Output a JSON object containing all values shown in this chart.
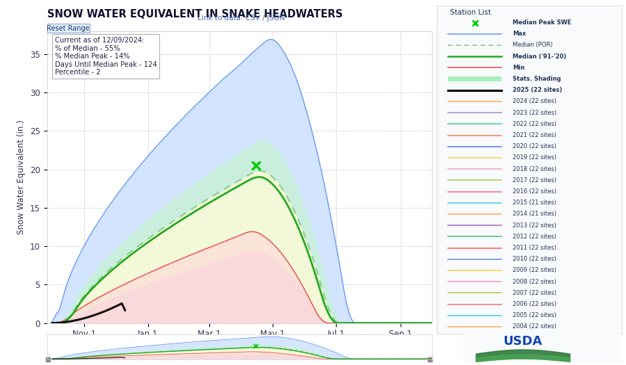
{
  "title": "SNOW WATER EQUIVALENT IN SNAKE HEADWATERS",
  "ylabel": "Snow Water Equivalent (in.)",
  "reset_button": "Reset Range",
  "link_text": "Link to data: CSV / JSON",
  "info_box": [
    "Current as of 12/09/2024:",
    "% of Median - 55%",
    "% Median Peak - 14%",
    "Days Until Median Peak - 124",
    "Percentile - 2"
  ],
  "station_list_title": "Station List",
  "xtick_labels": [
    "Nov 1",
    "Jan 1",
    "Mar 1",
    "May 1",
    "Jul 1",
    "Sep 1"
  ],
  "xtick_days": [
    31,
    92,
    151,
    212,
    273,
    335
  ],
  "ytick_labels": [
    0,
    5,
    10,
    15,
    20,
    25,
    30,
    35
  ],
  "ylim": [
    0,
    38
  ],
  "xlim": [
    -5,
    365
  ],
  "fig_bg": "#ffffff",
  "plot_bg": "#ffffff",
  "legend_items": [
    {
      "label": "Median Peak SWE",
      "color": "#00cc00",
      "style": "marker_x"
    },
    {
      "label": "Max",
      "color": "#6699ee",
      "style": "line"
    },
    {
      "label": "Median (POR)",
      "color": "#88cc88",
      "style": "dashed"
    },
    {
      "label": "Median ('91-'20)",
      "color": "#22aa22",
      "style": "line_bold"
    },
    {
      "label": "Min",
      "color": "#ee4444",
      "style": "line"
    },
    {
      "label": "Stats. Shading",
      "color": "#aaeebb",
      "style": "filled"
    },
    {
      "label": "2025 (22 sites)",
      "color": "#000000",
      "style": "line_bold"
    },
    {
      "label": "2024 (22 sites)",
      "color": "#ffaa55",
      "style": "line"
    },
    {
      "label": "2023 (22 sites)",
      "color": "#aa88cc",
      "style": "line"
    },
    {
      "label": "2022 (22 sites)",
      "color": "#44cc99",
      "style": "line"
    },
    {
      "label": "2021 (22 sites)",
      "color": "#ff7755",
      "style": "line"
    },
    {
      "label": "2020 (22 sites)",
      "color": "#5577dd",
      "style": "line"
    },
    {
      "label": "2019 (22 sites)",
      "color": "#ffcc44",
      "style": "line"
    },
    {
      "label": "2018 (22 sites)",
      "color": "#ff99cc",
      "style": "line"
    },
    {
      "label": "2017 (22 sites)",
      "color": "#aacc44",
      "style": "line"
    },
    {
      "label": "2016 (22 sites)",
      "color": "#ff6677",
      "style": "line"
    },
    {
      "label": "2015 (21 sites)",
      "color": "#44ccee",
      "style": "line"
    },
    {
      "label": "2014 (21 sites)",
      "color": "#ffaa55",
      "style": "line"
    },
    {
      "label": "2013 (22 sites)",
      "color": "#9966bb",
      "style": "line"
    },
    {
      "label": "2012 (22 sites)",
      "color": "#44bb88",
      "style": "line"
    },
    {
      "label": "2011 (22 sites)",
      "color": "#ff5544",
      "style": "line"
    },
    {
      "label": "2010 (22 sites)",
      "color": "#6688dd",
      "style": "line"
    },
    {
      "label": "2009 (22 sites)",
      "color": "#ffcc44",
      "style": "line"
    },
    {
      "label": "2008 (22 sites)",
      "color": "#ff99cc",
      "style": "line"
    },
    {
      "label": "2007 (22 sites)",
      "color": "#aacc44",
      "style": "line"
    },
    {
      "label": "2006 (22 sites)",
      "color": "#ff6677",
      "style": "line"
    },
    {
      "label": "2005 (22 sites)",
      "color": "#44ccee",
      "style": "line"
    },
    {
      "label": "2004 (22 sites)",
      "color": "#ffaa55",
      "style": "line"
    }
  ],
  "max_fill": "#cce0ff",
  "max_line": "#6699ee",
  "stats_upper_fill": "#c8eedd",
  "stats_lower_fill": "#ffeebb",
  "min_fill": "#ffdddd",
  "min_line": "#ee4444",
  "median_por_line": "#88cc88",
  "median_9120_line": "#22aa22",
  "current_line": "#111111",
  "peak_marker_color": "#00cc00",
  "peak_marker_x": 196,
  "peak_marker_y": 20.5
}
